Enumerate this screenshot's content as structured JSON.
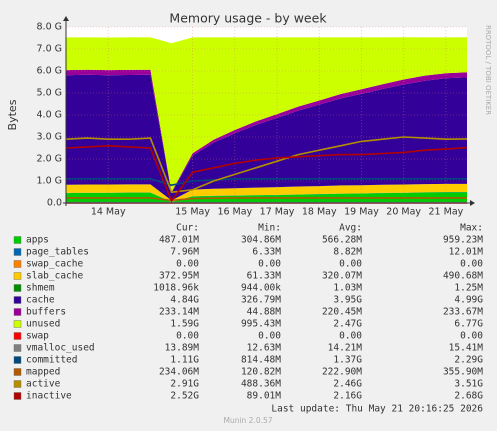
{
  "chart_data": {
    "type": "stacked-area-line",
    "title": "Memory usage - by week",
    "ylabel": "Bytes",
    "side_label": "RRDTOOL / TOBI OETIKER",
    "categories": [
      null,
      null,
      "14 May",
      null,
      null,
      null,
      "15 May",
      null,
      "16 May",
      null,
      "17 May",
      null,
      "18 May",
      null,
      "19 May",
      null,
      "20 May",
      null,
      "21 May",
      null
    ],
    "ylim": [
      0,
      8
    ],
    "yticks": [
      {
        "value": 0,
        "label": "0.0"
      },
      {
        "value": 1,
        "label": "1.0 G"
      },
      {
        "value": 2,
        "label": "2.0 G"
      },
      {
        "value": 3,
        "label": "3.0 G"
      },
      {
        "value": 4,
        "label": "4.0 G"
      },
      {
        "value": 5,
        "label": "5.0 G"
      },
      {
        "value": 6,
        "label": "6.0 G"
      },
      {
        "value": 7,
        "label": "7.0 G"
      },
      {
        "value": 8,
        "label": "8.0 G"
      }
    ],
    "grid": true,
    "stats_labels": [
      "Cur:",
      "Min:",
      "Avg:",
      "Max:"
    ],
    "series": [
      {
        "name": "apps",
        "color": "#00cc00",
        "kind": "area",
        "values": [
          0.45,
          0.46,
          0.46,
          0.47,
          0.47,
          0.05,
          0.3,
          0.32,
          0.33,
          0.35,
          0.36,
          0.38,
          0.4,
          0.42,
          0.43,
          0.45,
          0.46,
          0.48,
          0.49,
          0.49
        ],
        "stats": [
          "487.01M",
          "304.86M",
          "566.28M",
          "959.23M"
        ]
      },
      {
        "name": "page_tables",
        "color": "#0066b3",
        "kind": "area",
        "values": [
          0.008,
          0.008,
          0.008,
          0.008,
          0.008,
          0.006,
          0.008,
          0.008,
          0.008,
          0.008,
          0.008,
          0.008,
          0.008,
          0.008,
          0.008,
          0.008,
          0.008,
          0.008,
          0.008,
          0.008
        ],
        "stats": [
          "7.96M",
          "6.33M",
          "8.82M",
          "12.01M"
        ]
      },
      {
        "name": "swap_cache",
        "color": "#ff8000",
        "kind": "area",
        "values": [
          0,
          0,
          0,
          0,
          0,
          0,
          0,
          0,
          0,
          0,
          0,
          0,
          0,
          0,
          0,
          0,
          0,
          0,
          0,
          0
        ],
        "stats": [
          "0.00",
          "0.00",
          "0.00",
          "0.00"
        ]
      },
      {
        "name": "slab_cache",
        "color": "#ffcc00",
        "kind": "area",
        "values": [
          0.37,
          0.37,
          0.37,
          0.37,
          0.37,
          0.06,
          0.3,
          0.32,
          0.33,
          0.34,
          0.35,
          0.36,
          0.36,
          0.37,
          0.37,
          0.37,
          0.37,
          0.37,
          0.37,
          0.37
        ],
        "stats": [
          "372.95M",
          "61.33M",
          "320.07M",
          "490.68M"
        ]
      },
      {
        "name": "shmem",
        "color": "#008f00",
        "kind": "area",
        "values": [
          0.001,
          0.001,
          0.001,
          0.001,
          0.001,
          0.001,
          0.001,
          0.001,
          0.001,
          0.001,
          0.001,
          0.001,
          0.001,
          0.001,
          0.001,
          0.001,
          0.001,
          0.001,
          0.001,
          0.001
        ],
        "stats": [
          "1018.96k",
          "944.00k",
          "1.03M",
          "1.25M"
        ]
      },
      {
        "name": "cache",
        "color": "#330099",
        "kind": "area",
        "values": [
          4.98,
          4.99,
          4.97,
          4.97,
          4.98,
          0.33,
          1.55,
          2.1,
          2.5,
          2.85,
          3.15,
          3.45,
          3.7,
          3.95,
          4.15,
          4.35,
          4.55,
          4.7,
          4.8,
          4.84
        ],
        "stats": [
          "4.84G",
          "326.79M",
          "3.95G",
          "4.99G"
        ]
      },
      {
        "name": "buffers",
        "color": "#990099",
        "kind": "area",
        "values": [
          0.23,
          0.23,
          0.233,
          0.233,
          0.23,
          0.045,
          0.1,
          0.13,
          0.15,
          0.16,
          0.17,
          0.18,
          0.19,
          0.2,
          0.21,
          0.22,
          0.225,
          0.23,
          0.23,
          0.233
        ],
        "stats": [
          "233.14M",
          "44.88M",
          "220.45M",
          "233.67M"
        ]
      },
      {
        "name": "unused",
        "color": "#ccff00",
        "kind": "area",
        "values": [
          1.49,
          1.47,
          1.48,
          1.48,
          1.47,
          6.77,
          5.27,
          4.65,
          4.21,
          3.82,
          3.49,
          3.15,
          2.87,
          2.58,
          2.36,
          2.13,
          1.92,
          1.74,
          1.63,
          1.59
        ],
        "stats": [
          "1.59G",
          "995.43M",
          "2.47G",
          "6.77G"
        ]
      },
      {
        "name": "swap",
        "color": "#ff0000",
        "kind": "line",
        "values": [
          0,
          0,
          0,
          0,
          0,
          0,
          0,
          0,
          0,
          0,
          0,
          0,
          0,
          0,
          0,
          0,
          0,
          0,
          0,
          0
        ],
        "stats": [
          "0.00",
          "0.00",
          "0.00",
          "0.00"
        ]
      },
      {
        "name": "vmalloc_used",
        "color": "#808080",
        "kind": "line",
        "values": [
          0.014,
          0.014,
          0.014,
          0.014,
          0.014,
          0.013,
          0.014,
          0.014,
          0.014,
          0.014,
          0.014,
          0.014,
          0.014,
          0.014,
          0.014,
          0.014,
          0.014,
          0.014,
          0.014,
          0.014
        ],
        "stats": [
          "13.89M",
          "12.63M",
          "14.21M",
          "15.41M"
        ]
      },
      {
        "name": "committed",
        "color": "#00487d",
        "kind": "line",
        "values": [
          1.1,
          1.1,
          1.1,
          1.1,
          1.1,
          0.81,
          1.0,
          1.05,
          1.1,
          1.1,
          1.1,
          1.1,
          1.1,
          1.1,
          1.1,
          1.1,
          1.1,
          1.1,
          1.1,
          1.1
        ],
        "stats": [
          "1.11G",
          "814.48M",
          "1.37G",
          "2.29G"
        ]
      },
      {
        "name": "mapped",
        "color": "#b35a00",
        "kind": "line",
        "values": [
          0.23,
          0.23,
          0.23,
          0.23,
          0.23,
          0.12,
          0.2,
          0.22,
          0.23,
          0.23,
          0.23,
          0.23,
          0.23,
          0.23,
          0.23,
          0.23,
          0.23,
          0.23,
          0.23,
          0.23
        ],
        "stats": [
          "234.06M",
          "120.82M",
          "222.90M",
          "355.90M"
        ]
      },
      {
        "name": "active",
        "color": "#b38f00",
        "kind": "line",
        "values": [
          2.9,
          2.95,
          2.9,
          2.9,
          2.95,
          0.49,
          0.6,
          1.0,
          1.3,
          1.6,
          1.9,
          2.2,
          2.4,
          2.6,
          2.8,
          2.9,
          3.0,
          2.95,
          2.9,
          2.91
        ],
        "stats": [
          "2.91G",
          "488.36M",
          "2.46G",
          "3.51G"
        ]
      },
      {
        "name": "inactive",
        "color": "#b30000",
        "kind": "line",
        "values": [
          2.5,
          2.55,
          2.6,
          2.55,
          2.5,
          0.09,
          1.4,
          1.6,
          1.8,
          1.95,
          2.05,
          2.1,
          2.15,
          2.2,
          2.2,
          2.25,
          2.3,
          2.4,
          2.45,
          2.52
        ],
        "stats": [
          "2.52G",
          "89.01M",
          "2.16G",
          "2.68G"
        ]
      }
    ],
    "last_update": "Last update: Thu May 21 20:16:25 2026",
    "footer": "Munin 2.0.57"
  }
}
